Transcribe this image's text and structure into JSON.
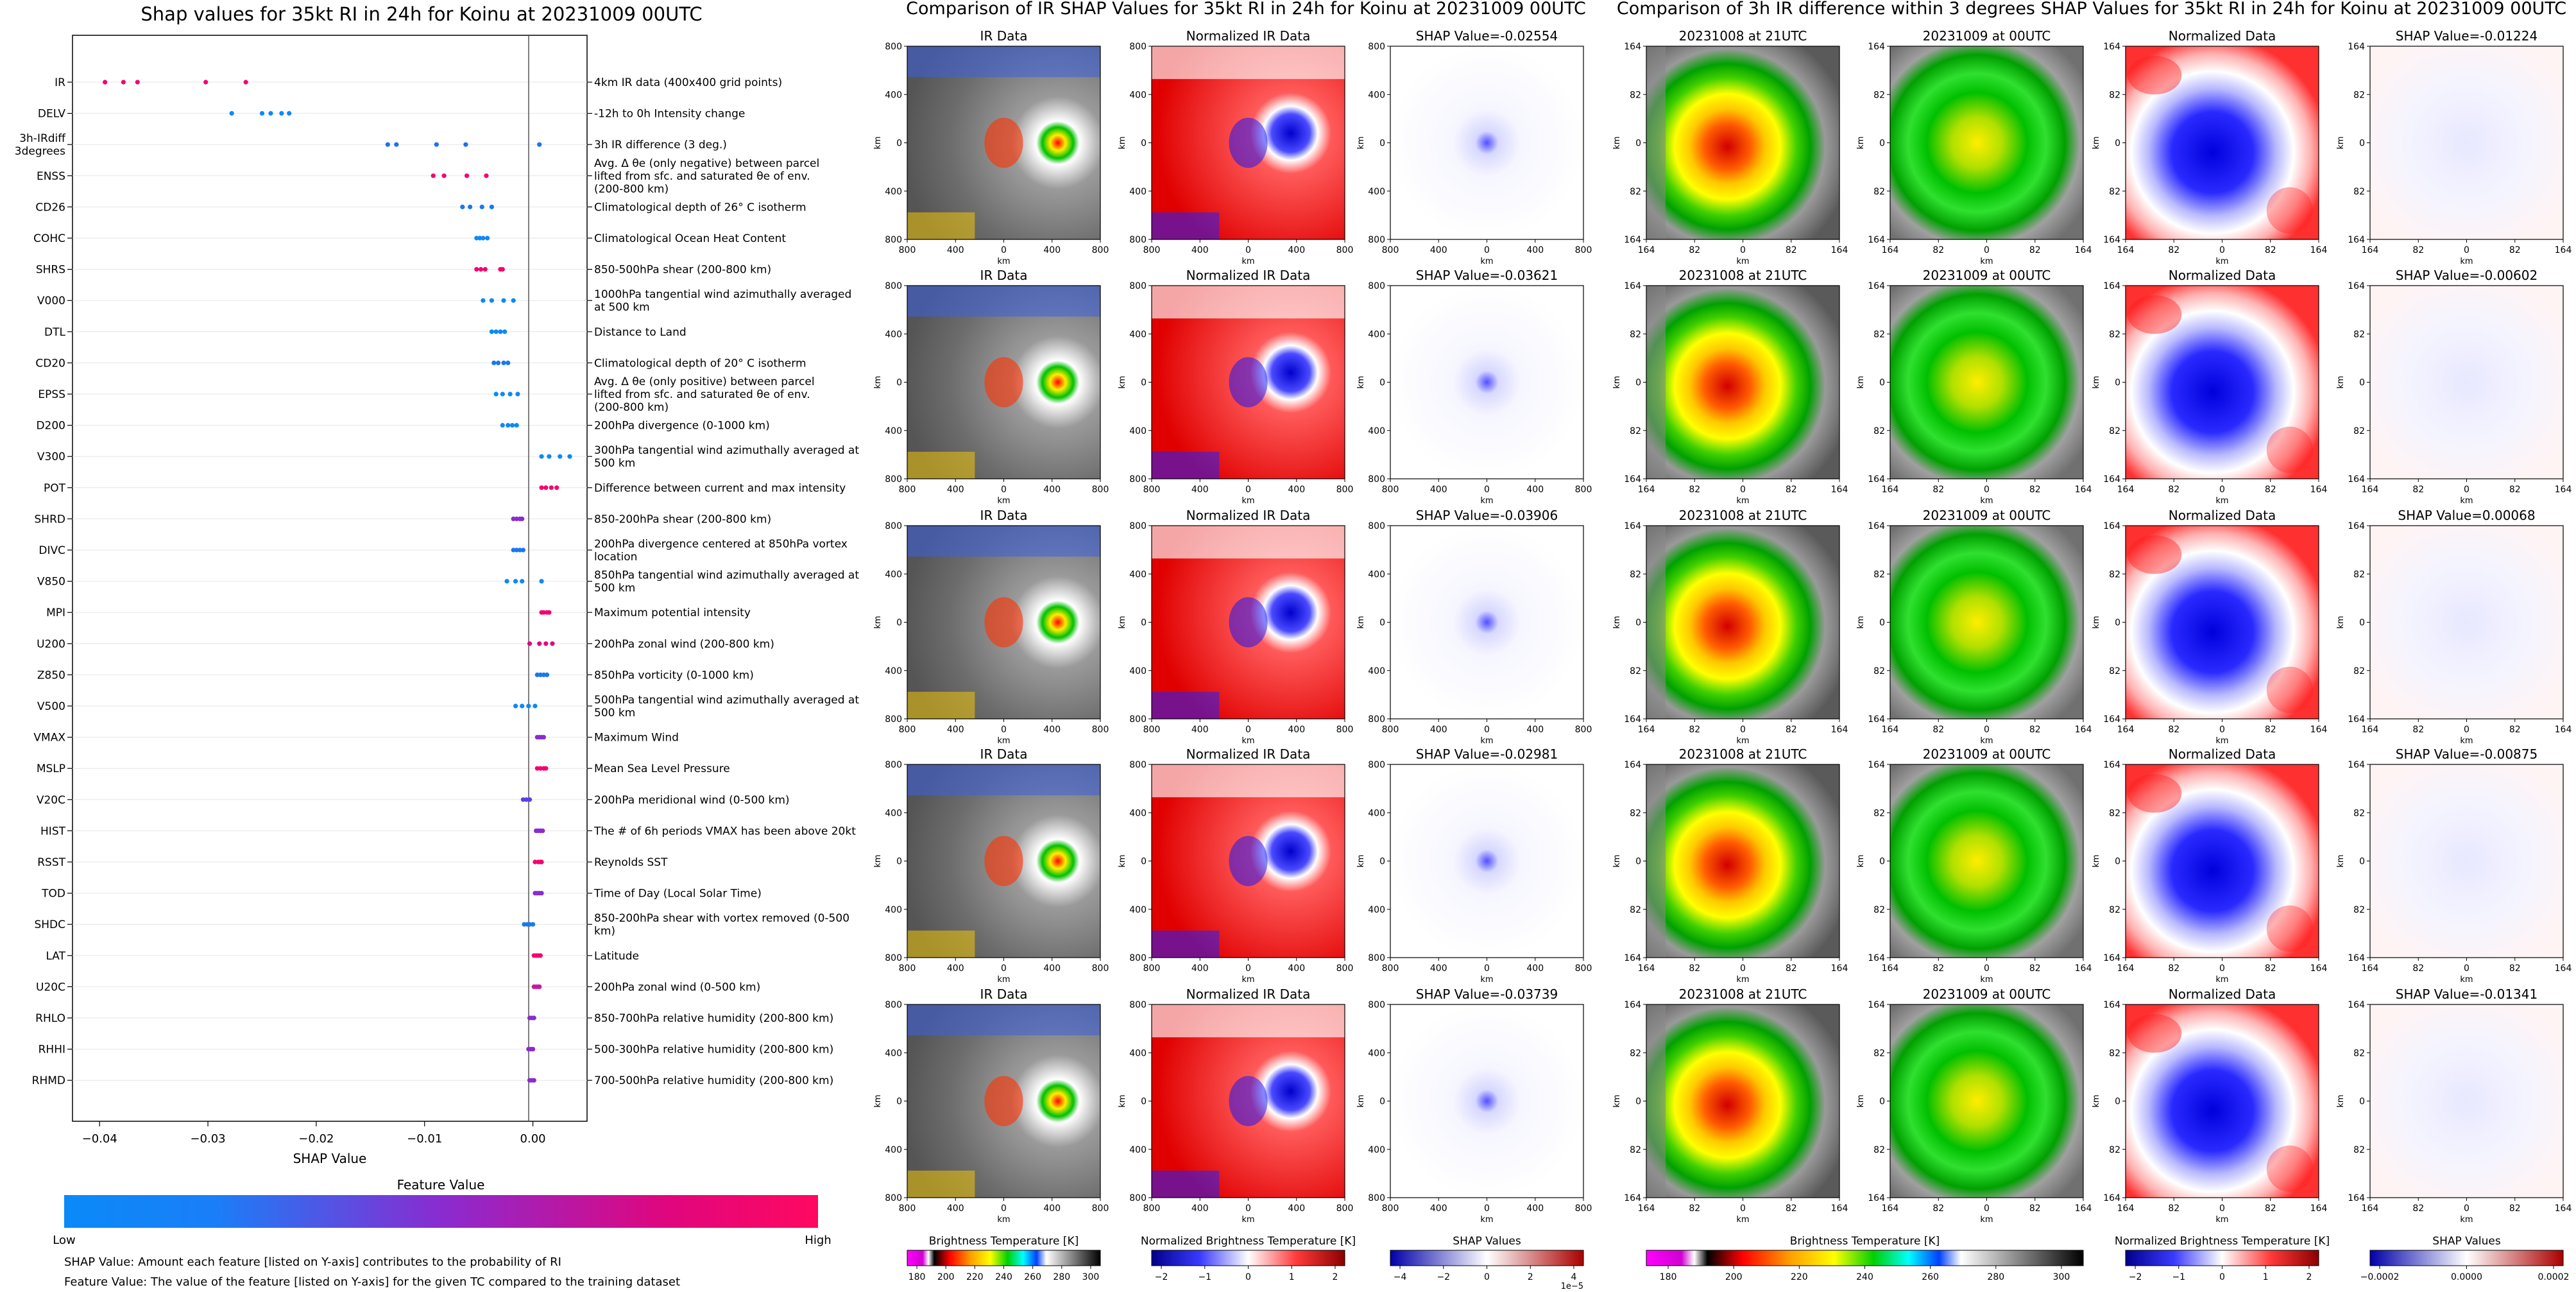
{
  "summary_chart": {
    "title": "Shap values for 35kt RI in 24h for Koinu at 20231009 00UTC",
    "xlabel": "SHAP Value",
    "x_ticks": [
      "−0.04",
      "−0.03",
      "−0.02",
      "−0.01",
      "0.00"
    ],
    "x_tick_values": [
      -0.04,
      -0.03,
      -0.02,
      -0.01,
      0.0
    ],
    "xlim": [
      -0.0425,
      0.005
    ]
  },
  "colorbar": {
    "title": "Feature Value",
    "low_label": "Low",
    "high_label": "High",
    "low_color": "#0a8af8",
    "mid_color": "#8a2bd0",
    "high_color": "#f5026e"
  },
  "footnotes": [
    "SHAP Value: Amount each feature [listed on Y-axis] contributes to the probability of RI",
    "Feature Value: The value of the feature [listed on Y-axis] for the given TC compared to the training dataset"
  ],
  "middle_panel": {
    "title": "Comparison of IR SHAP Values for 35kt RI in 24h for Koinu at 20231009 00UTC",
    "col_titles": [
      "IR Data",
      "Normalized IR Data"
    ],
    "shap_titles": [
      "SHAP Value=-0.02554",
      "SHAP Value=-0.03621",
      "SHAP Value=-0.03906",
      "SHAP Value=-0.02981",
      "SHAP Value=-0.03739"
    ],
    "ticks": [
      "800",
      "400",
      "0",
      "400",
      "800"
    ],
    "axis_label": "km",
    "colorbars": [
      {
        "label": "Brightness Temperature [K]",
        "ticks": [
          "180",
          "200",
          "220",
          "240",
          "260",
          "280",
          "300"
        ]
      },
      {
        "label": "Normalized Brightness Temperature [K]",
        "ticks": [
          "−2",
          "−1",
          "0",
          "1",
          "2"
        ]
      },
      {
        "label": "SHAP Values",
        "ticks": [
          "−4",
          "−2",
          "0",
          "2",
          "4"
        ],
        "offset": "1e−5"
      }
    ]
  },
  "right_panel": {
    "title": "Comparison of 3h IR difference within 3 degrees SHAP Values for 35kt RI in 24h for Koinu at 20231009 00UTC",
    "col_titles": [
      "20231008 at 21UTC",
      "20231009 at 00UTC",
      "Normalized Data"
    ],
    "shap_titles": [
      "SHAP Value=-0.01224",
      "SHAP Value=-0.00602",
      "SHAP Value=0.00068",
      "SHAP Value=-0.00875",
      "SHAP Value=-0.01341"
    ],
    "ticks": [
      "164",
      "82",
      "0",
      "82",
      "164"
    ],
    "axis_label": "km",
    "colorbars": [
      {
        "label": "Brightness Temperature [K]",
        "ticks": [
          "180",
          "200",
          "220",
          "240",
          "260",
          "280",
          "300"
        ]
      },
      {
        "label": "Normalized Brightness Temperature [K]",
        "ticks": [
          "−2",
          "−1",
          "0",
          "1",
          "2"
        ]
      },
      {
        "label": "SHAP Values",
        "ticks": [
          "−0.0002",
          "0.0000",
          "0.0002"
        ]
      }
    ]
  },
  "chart_data": {
    "type": "scatter",
    "title": "Shap values for 35kt RI in 24h for Koinu at 20231009 00UTC",
    "xlabel": "SHAP Value",
    "xlim": [
      -0.0425,
      0.005
    ],
    "features": [
      {
        "name": "IR",
        "desc": "4km IR data (400x400 grid points)",
        "color": "#f5026e",
        "values": [
          -0.0395,
          -0.0378,
          -0.0365,
          -0.0302,
          -0.0265
        ]
      },
      {
        "name": "DELV",
        "desc": "-12h to 0h Intensity change",
        "color": "#0a8af8",
        "values": [
          -0.0278,
          -0.025,
          -0.0242,
          -0.0232,
          -0.0225
        ]
      },
      {
        "name": "3h-IRdiff 3degrees",
        "desc": "3h IR difference (3 deg.)",
        "color": "#1e70f0",
        "values": [
          -0.0134,
          -0.0126,
          -0.0089,
          -0.0062,
          0.0006
        ]
      },
      {
        "name": "ENSS",
        "desc": "Avg. Δ θe (only negative) between parcel lifted from sfc. and saturated θe of env. (200-800 km)",
        "color": "#f5026e",
        "values": [
          -0.0092,
          -0.0082,
          -0.0061,
          -0.0043
        ]
      },
      {
        "name": "CD26",
        "desc": "Climatological depth of 26° C isotherm",
        "color": "#1a78f0",
        "values": [
          -0.0065,
          -0.0058,
          -0.0047,
          -0.0038
        ]
      },
      {
        "name": "COHC",
        "desc": "Climatological Ocean Heat Content",
        "color": "#0a8af8",
        "values": [
          -0.0052,
          -0.0049,
          -0.0046,
          -0.0042
        ]
      },
      {
        "name": "SHRS",
        "desc": "850-500hPa shear (200-800 km)",
        "color": "#f5026e",
        "values": [
          -0.0052,
          -0.0048,
          -0.0044,
          -0.003,
          -0.0028
        ]
      },
      {
        "name": "V000",
        "desc": "1000hPa tangential wind azimuthally averaged at 500 km",
        "color": "#0a8af8",
        "values": [
          -0.0046,
          -0.0038,
          -0.0027,
          -0.0018
        ]
      },
      {
        "name": "DTL",
        "desc": "Distance to Land",
        "color": "#0a8af8",
        "values": [
          -0.0038,
          -0.0034,
          -0.003,
          -0.0026
        ]
      },
      {
        "name": "CD20",
        "desc": "Climatological depth of 20° C isotherm",
        "color": "#1a78f0",
        "values": [
          -0.0036,
          -0.0032,
          -0.0027,
          -0.0023
        ]
      },
      {
        "name": "EPSS",
        "desc": "Avg. Δ θe (only positive) between parcel lifted from sfc. and saturated θe of env. (200-800 km)",
        "color": "#0a8af8",
        "values": [
          -0.0034,
          -0.0028,
          -0.0021,
          -0.0014
        ]
      },
      {
        "name": "D200",
        "desc": "200hPa divergence (0-1000 km)",
        "color": "#0a8af8",
        "values": [
          -0.0028,
          -0.0023,
          -0.0019,
          -0.0015
        ]
      },
      {
        "name": "V300",
        "desc": "300hPa tangential wind azimuthally averaged at 500 km",
        "color": "#0a8af8",
        "values": [
          0.0008,
          0.0015,
          0.0025,
          0.0034
        ]
      },
      {
        "name": "POT",
        "desc": "Difference between current and max intensity",
        "color": "#f5026e",
        "values": [
          0.0008,
          0.0012,
          0.0017,
          0.0022
        ]
      },
      {
        "name": "SHRD",
        "desc": "850-200hPa shear (200-800 km)",
        "color": "#8a2bd0",
        "values": [
          -0.0018,
          -0.0015,
          -0.0012,
          -0.001
        ]
      },
      {
        "name": "DIVC",
        "desc": "200hPa divergence centered at 850hPa vortex location",
        "color": "#1a78f0",
        "values": [
          -0.0018,
          -0.0015,
          -0.0012,
          -0.0009
        ]
      },
      {
        "name": "V850",
        "desc": "850hPa tangential wind azimuthally averaged at 500 km",
        "color": "#0a8af8",
        "values": [
          -0.0024,
          -0.0016,
          -0.001,
          0.0008
        ]
      },
      {
        "name": "MPI",
        "desc": "Maximum potential intensity",
        "color": "#f5026e",
        "values": [
          0.0008,
          0.001,
          0.0013,
          0.0015
        ]
      },
      {
        "name": "U200",
        "desc": "200hPa zonal wind (200-800 km)",
        "color": "#e0067e",
        "values": [
          -0.0003,
          0.0006,
          0.0012,
          0.0018
        ]
      },
      {
        "name": "Z850",
        "desc": "850hPa vorticity (0-1000 km)",
        "color": "#1a78f0",
        "values": [
          0.0004,
          0.0007,
          0.001,
          0.0013
        ]
      },
      {
        "name": "V500",
        "desc": "500hPa tangential wind azimuthally averaged at 500 km",
        "color": "#0a8af8",
        "values": [
          -0.0016,
          -0.001,
          -0.0004,
          0.0002
        ]
      },
      {
        "name": "VMAX",
        "desc": "Maximum Wind",
        "color": "#8a2bd0",
        "values": [
          0.0004,
          0.0006,
          0.0008,
          0.001
        ]
      },
      {
        "name": "MSLP",
        "desc": "Mean Sea Level Pressure",
        "color": "#f5026e",
        "values": [
          0.0004,
          0.0007,
          0.001,
          0.0012
        ]
      },
      {
        "name": "V20C",
        "desc": "200hPa meridional wind (0-500 km)",
        "color": "#5a40e0",
        "values": [
          -0.0009,
          -0.0006,
          -0.0003
        ]
      },
      {
        "name": "HIST",
        "desc": "The # of 6h periods VMAX has been above 20kt",
        "color": "#8a2bd0",
        "values": [
          0.0003,
          0.0005,
          0.0007,
          0.0009
        ]
      },
      {
        "name": "RSST",
        "desc": "Reynolds SST",
        "color": "#f5026e",
        "values": [
          0.0002,
          0.0005,
          0.0007,
          0.0008
        ]
      },
      {
        "name": "TOD",
        "desc": "Time of Day (Local Solar Time)",
        "color": "#8a2bd0",
        "values": [
          0.0002,
          0.0004,
          0.0006,
          0.0008
        ]
      },
      {
        "name": "SHDC",
        "desc": "850-200hPa shear with vortex removed (0-500 km)",
        "color": "#1a78f0",
        "values": [
          -0.0008,
          -0.0005,
          -0.0003,
          0.0
        ]
      },
      {
        "name": "LAT",
        "desc": "Latitude",
        "color": "#f5026e",
        "values": [
          0.0001,
          0.0003,
          0.0005,
          0.0007
        ]
      },
      {
        "name": "U20C",
        "desc": "200hPa zonal wind (0-500 km)",
        "color": "#c81a9a",
        "values": [
          0.0001,
          0.0003,
          0.0005,
          0.0006
        ]
      },
      {
        "name": "RHLO",
        "desc": "850-700hPa relative humidity (200-800 km)",
        "color": "#8a2bd0",
        "values": [
          -0.0003,
          -0.0001,
          0.0001
        ]
      },
      {
        "name": "RHHI",
        "desc": "500-300hPa relative humidity (200-800 km)",
        "color": "#8a2bd0",
        "values": [
          -0.0004,
          -0.0002,
          0.0
        ]
      },
      {
        "name": "RHMD",
        "desc": "700-500hPa relative humidity (200-800 km)",
        "color": "#8a2bd0",
        "values": [
          -0.0003,
          -0.0001,
          0.0001
        ]
      }
    ]
  }
}
